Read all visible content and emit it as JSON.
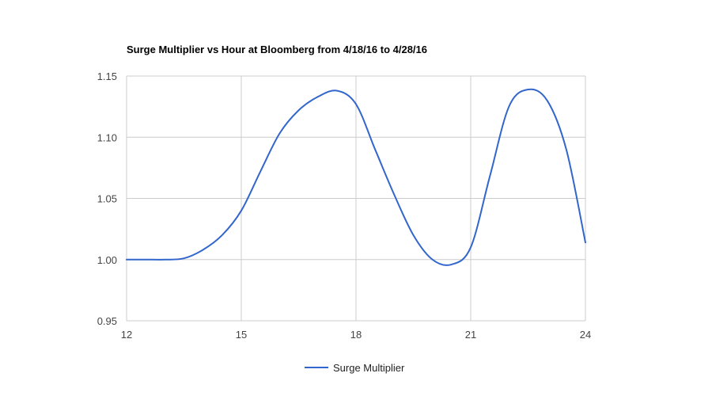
{
  "chart_data": {
    "type": "line",
    "title": "Surge Multiplier vs Hour at Bloomberg from 4/18/16 to 4/28/16",
    "xlabel": "",
    "ylabel": "",
    "xlim": [
      12,
      24
    ],
    "ylim": [
      0.95,
      1.15
    ],
    "x_ticks": [
      "12",
      "15",
      "18",
      "21",
      "24"
    ],
    "y_ticks": [
      "0.95",
      "1.00",
      "1.05",
      "1.10",
      "1.15"
    ],
    "grid": true,
    "legend_position": "bottom",
    "series": [
      {
        "name": "Surge Multiplier",
        "color": "#3366cc",
        "x": [
          12,
          12.5,
          13,
          13.5,
          14,
          14.5,
          15,
          15.5,
          16,
          16.5,
          17,
          17.5,
          18,
          18.5,
          19,
          19.5,
          20,
          20.5,
          21,
          21.5,
          22,
          22.5,
          23,
          23.5,
          24
        ],
        "values": [
          1.0,
          1.0,
          1.0,
          1.001,
          1.008,
          1.02,
          1.04,
          1.072,
          1.103,
          1.122,
          1.133,
          1.138,
          1.127,
          1.09,
          1.053,
          1.02,
          1.0,
          0.996,
          1.01,
          1.068,
          1.125,
          1.139,
          1.13,
          1.09,
          1.014
        ]
      }
    ]
  }
}
